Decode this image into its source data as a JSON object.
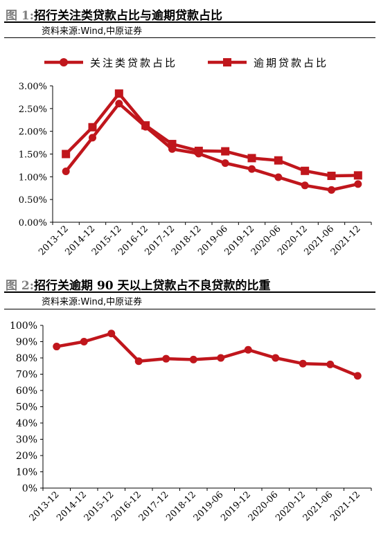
{
  "colors": {
    "series": "#c0161c",
    "axis": "#000000"
  },
  "figure1": {
    "num": "图 1:",
    "title": "招行关注类贷款占比与逾期贷款占比",
    "source": "资料来源:Wind,中原证券",
    "chart_data": {
      "type": "line",
      "x": [
        "2013-12",
        "2014-12",
        "2015-12",
        "2016-12",
        "2017-12",
        "2018-12",
        "2019-06",
        "2019-12",
        "2020-06",
        "2020-12",
        "2021-06",
        "2021-12"
      ],
      "ylim": [
        0,
        3.0
      ],
      "yticks": [
        "0.00%",
        "0.50%",
        "1.00%",
        "1.50%",
        "2.00%",
        "2.50%",
        "3.00%"
      ],
      "legend_position": "top",
      "series": [
        {
          "name": "关注类贷款占比",
          "marker": "circle",
          "values": [
            1.12,
            1.86,
            2.61,
            2.1,
            1.61,
            1.51,
            1.3,
            1.17,
            0.99,
            0.81,
            0.71,
            0.84
          ]
        },
        {
          "name": "逾期贷款占比",
          "marker": "square",
          "values": [
            1.5,
            2.09,
            2.83,
            2.13,
            1.72,
            1.57,
            1.56,
            1.41,
            1.36,
            1.13,
            1.02,
            1.03
          ]
        }
      ]
    }
  },
  "figure2": {
    "num": "图 2:",
    "title": "招行关逾期 90 天以上贷款占不良贷款的比重",
    "source": "资料来源:Wind,中原证券",
    "chart_data": {
      "type": "line",
      "x": [
        "2013-12",
        "2014-12",
        "2015-12",
        "2016-12",
        "2017-12",
        "2018-12",
        "2019-06",
        "2019-12",
        "2020-06",
        "2020-12",
        "2021-06",
        "2021-12"
      ],
      "ylim": [
        0,
        100
      ],
      "yticks": [
        "0%",
        "10%",
        "20%",
        "30%",
        "40%",
        "50%",
        "60%",
        "70%",
        "80%",
        "90%",
        "100%"
      ],
      "series": [
        {
          "marker": "circle",
          "values": [
            87,
            90,
            95,
            78,
            79.5,
            79,
            80,
            85,
            80,
            76.5,
            76,
            69
          ]
        }
      ]
    }
  }
}
